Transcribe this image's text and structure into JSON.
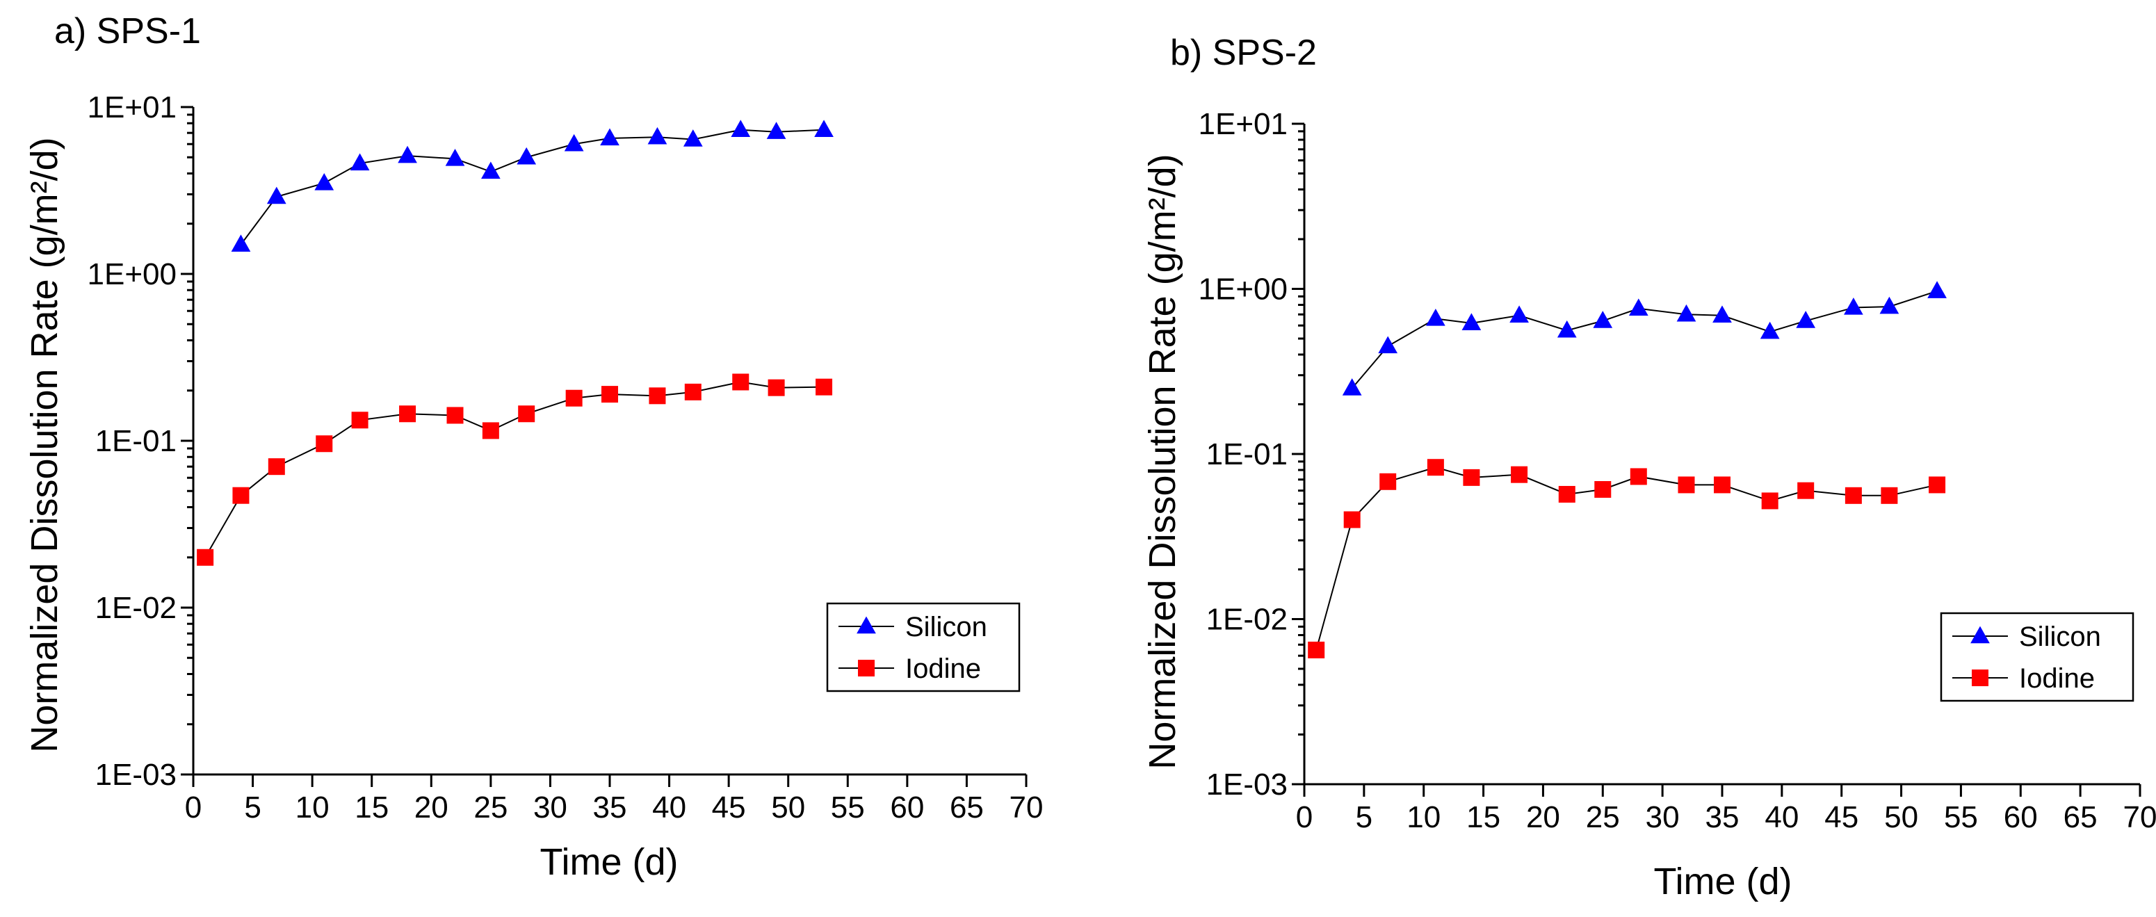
{
  "chart_data": [
    {
      "type": "line",
      "title": "a) SPS-1",
      "xlabel": "Time (d)",
      "ylabel": "Normalized Dissolution Rate (g/m²/d)",
      "yscale": "log",
      "xlim": [
        0,
        70
      ],
      "ylim": [
        0.001,
        10
      ],
      "xticks": [
        "0",
        "5",
        "10",
        "15",
        "20",
        "25",
        "30",
        "35",
        "40",
        "45",
        "50",
        "55",
        "60",
        "65",
        "70"
      ],
      "yticks": [
        "1E-03",
        "1E-02",
        "1E-01",
        "1E+00",
        "1E+01"
      ],
      "legend_position": "bottom-right",
      "series": [
        {
          "name": "Silicon",
          "marker": "triangle",
          "color": "#0000ff",
          "x": [
            4,
            7,
            11,
            14,
            18,
            22,
            25,
            28,
            32,
            35,
            39,
            42,
            46,
            49,
            53
          ],
          "values": [
            1.5,
            2.9,
            3.5,
            4.6,
            5.1,
            4.9,
            4.1,
            5.0,
            6.0,
            6.5,
            6.6,
            6.4,
            7.3,
            7.1,
            7.3
          ]
        },
        {
          "name": "Iodine",
          "marker": "square",
          "color": "#ff0000",
          "x": [
            1,
            4,
            7,
            11,
            14,
            18,
            22,
            25,
            28,
            32,
            35,
            39,
            42,
            46,
            49,
            53
          ],
          "values": [
            0.02,
            0.047,
            0.07,
            0.096,
            0.133,
            0.145,
            0.142,
            0.115,
            0.145,
            0.18,
            0.19,
            0.186,
            0.196,
            0.225,
            0.208,
            0.21
          ]
        }
      ]
    },
    {
      "type": "line",
      "title": "b) SPS-2",
      "xlabel": "Time (d)",
      "ylabel": "Normalized Dissolution Rate (g/m²/d)",
      "yscale": "log",
      "xlim": [
        0,
        70
      ],
      "ylim": [
        0.001,
        10
      ],
      "xticks": [
        "0",
        "5",
        "10",
        "15",
        "20",
        "25",
        "30",
        "35",
        "40",
        "45",
        "50",
        "55",
        "60",
        "65",
        "70"
      ],
      "yticks": [
        "1E-03",
        "1E-02",
        "1E-01",
        "1E+00",
        "1E+01"
      ],
      "legend_position": "bottom-right",
      "series": [
        {
          "name": "Silicon",
          "marker": "triangle",
          "color": "#0000ff",
          "x": [
            4,
            7,
            11,
            14,
            18,
            22,
            25,
            28,
            32,
            35,
            39,
            42,
            46,
            49,
            53
          ],
          "values": [
            0.25,
            0.45,
            0.66,
            0.62,
            0.69,
            0.56,
            0.64,
            0.76,
            0.7,
            0.69,
            0.55,
            0.64,
            0.77,
            0.78,
            0.97
          ]
        },
        {
          "name": "Iodine",
          "marker": "square",
          "color": "#ff0000",
          "x": [
            1,
            4,
            7,
            11,
            14,
            18,
            22,
            25,
            28,
            32,
            35,
            39,
            42,
            46,
            49,
            53
          ],
          "values": [
            0.0065,
            0.04,
            0.068,
            0.083,
            0.072,
            0.075,
            0.057,
            0.061,
            0.073,
            0.065,
            0.065,
            0.052,
            0.06,
            0.056,
            0.056,
            0.065
          ]
        }
      ]
    }
  ]
}
